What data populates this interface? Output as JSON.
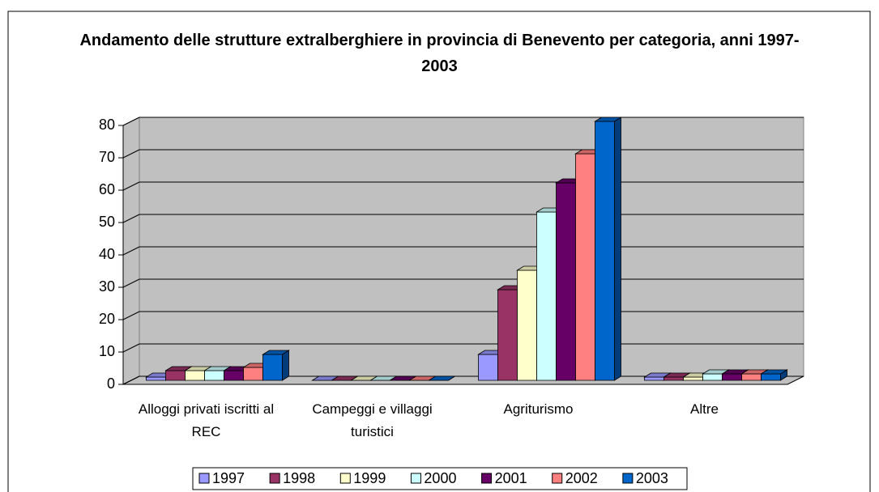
{
  "chart_data": {
    "type": "bar",
    "title": "Andamento delle strutture extralberghiere in provincia di Benevento per categoria, anni 1997-2003",
    "categories": [
      "Alloggi privati iscritti al REC",
      "Campeggi e villaggi turistici",
      "Agriturismo",
      "Altre"
    ],
    "series": [
      {
        "name": "1997",
        "color": "#9999ff",
        "values": [
          1,
          0,
          8,
          1
        ]
      },
      {
        "name": "1998",
        "color": "#993366",
        "values": [
          3,
          0,
          28,
          1
        ]
      },
      {
        "name": "1999",
        "color": "#ffffcc",
        "values": [
          3,
          0,
          34,
          1
        ]
      },
      {
        "name": "2000",
        "color": "#ccffff",
        "values": [
          3,
          0,
          52,
          2
        ]
      },
      {
        "name": "2001",
        "color": "#660066",
        "values": [
          3,
          0,
          61,
          2
        ]
      },
      {
        "name": "2002",
        "color": "#ff8080",
        "values": [
          4,
          0,
          70,
          2
        ]
      },
      {
        "name": "2003",
        "color": "#0066cc",
        "values": [
          8,
          0,
          80,
          2
        ]
      }
    ],
    "ylim": [
      0,
      80
    ],
    "yticks": [
      0,
      10,
      20,
      30,
      40,
      50,
      60,
      70,
      80
    ],
    "grid": true,
    "legend": "bottom"
  }
}
